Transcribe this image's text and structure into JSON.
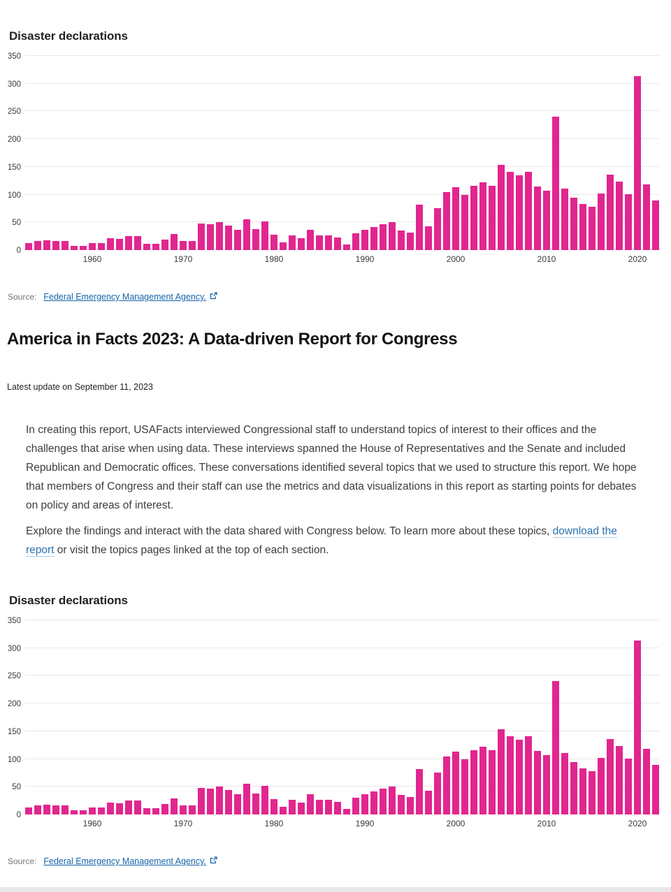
{
  "header": {
    "title": "America in Facts 2023: A Data-driven Report for Congress",
    "updated": "Latest update on September 11, 2023"
  },
  "intro": {
    "paragraph1": "In creating this report, USAFacts interviewed Congressional staff to understand topics of interest to their offices and the challenges that arise when using data. These interviews spanned the House of Representatives and the Senate and included Republican and Democratic offices. These conversations identified several topics that we used to structure this report. We hope that members of Congress and their staff can use the metrics and data visualizations in this report as starting points for debates on policy and areas of interest.",
    "paragraph2_before": "Explore the findings and interact with the data shared with Congress below. To learn more about these topics, ",
    "download_link": "download the report",
    "paragraph2_after": " or visit the topics pages linked at the top of each section."
  },
  "colors": {
    "bar": "#e2268f",
    "grid": "#e9e9e9",
    "source_link_blue": "#1565ab",
    "body_link_blue": "#2b72ad",
    "footer_strip": "#e8e8e8"
  },
  "chart_data": [
    {
      "type": "bar",
      "title": "Disaster declarations",
      "years_range": [
        1953,
        2022
      ],
      "values": [
        13,
        17,
        18,
        16,
        16,
        7,
        7,
        12,
        12,
        22,
        20,
        25,
        25,
        11,
        11,
        19,
        29,
        17,
        17,
        48,
        46,
        51,
        44,
        37,
        56,
        38,
        52,
        28,
        14,
        26,
        21,
        37,
        26,
        27,
        23,
        10,
        30,
        36,
        42,
        46,
        50,
        35,
        32,
        82,
        43,
        75,
        105,
        113,
        99,
        116,
        122,
        116,
        153,
        141,
        135,
        141,
        114,
        107,
        241,
        111,
        94,
        83,
        78,
        102,
        136,
        123,
        101,
        314,
        118,
        89
      ],
      "xlabel": "",
      "ylabel": "",
      "ylim": [
        0,
        350
      ],
      "yticks": [
        0,
        50,
        100,
        150,
        200,
        250,
        300,
        350
      ],
      "xticks": [
        1960,
        1970,
        1980,
        1990,
        2000,
        2010,
        2020
      ],
      "grid": true,
      "legend": "none",
      "bar_color": "#e2268f",
      "source_label": "Source:",
      "source_link_text": "Federal Emergency Management Agency."
    },
    {
      "type": "bar",
      "title": "Disaster declarations",
      "years_range": [
        1953,
        2022
      ],
      "values": [
        13,
        17,
        18,
        16,
        16,
        7,
        7,
        12,
        12,
        22,
        20,
        25,
        25,
        11,
        11,
        19,
        29,
        17,
        17,
        48,
        46,
        51,
        44,
        37,
        56,
        38,
        52,
        28,
        14,
        26,
        21,
        37,
        26,
        27,
        23,
        10,
        30,
        36,
        42,
        46,
        50,
        35,
        32,
        82,
        43,
        75,
        105,
        113,
        99,
        116,
        122,
        116,
        153,
        141,
        135,
        141,
        114,
        107,
        241,
        111,
        94,
        83,
        78,
        102,
        136,
        123,
        101,
        314,
        118,
        89
      ],
      "xlabel": "",
      "ylabel": "",
      "ylim": [
        0,
        350
      ],
      "yticks": [
        0,
        50,
        100,
        150,
        200,
        250,
        300,
        350
      ],
      "xticks": [
        1960,
        1970,
        1980,
        1990,
        2000,
        2010,
        2020
      ],
      "grid": true,
      "legend": "none",
      "bar_color": "#e2268f",
      "source_label": "Source:",
      "source_link_text": "Federal Emergency Management Agency."
    }
  ]
}
